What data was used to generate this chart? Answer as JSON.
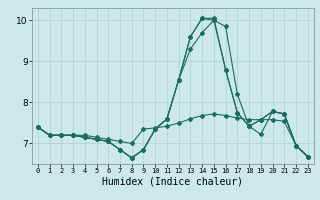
{
  "title": "",
  "xlabel": "Humidex (Indice chaleur)",
  "bg_color": "#cce8e8",
  "grid_color": "#aacfcf",
  "line_color": "#1a6b60",
  "xlim": [
    -0.5,
    23.5
  ],
  "ylim": [
    6.5,
    10.3
  ],
  "yticks": [
    7,
    8,
    9,
    10
  ],
  "xticks": [
    0,
    1,
    2,
    3,
    4,
    5,
    6,
    7,
    8,
    9,
    10,
    11,
    12,
    13,
    14,
    15,
    16,
    17,
    18,
    19,
    20,
    21,
    22,
    23
  ],
  "line1_x": [
    0,
    1,
    2,
    3,
    4,
    5,
    6,
    7,
    8,
    9,
    10,
    11,
    12,
    13,
    14,
    15,
    16,
    17,
    18,
    19,
    20,
    21,
    22,
    23
  ],
  "line1_y": [
    7.4,
    7.2,
    7.2,
    7.2,
    7.2,
    7.15,
    7.1,
    7.05,
    7.0,
    7.35,
    7.38,
    7.42,
    7.5,
    7.6,
    7.68,
    7.72,
    7.68,
    7.62,
    7.58,
    7.58,
    7.58,
    7.54,
    6.95,
    6.68
  ],
  "line2_x": [
    0,
    1,
    2,
    3,
    4,
    5,
    6,
    7,
    8,
    9,
    10,
    11,
    12,
    13,
    14,
    15,
    16,
    17,
    18,
    19,
    20,
    21,
    22,
    23
  ],
  "line2_y": [
    7.4,
    7.2,
    7.2,
    7.2,
    7.15,
    7.1,
    7.05,
    6.85,
    6.65,
    6.85,
    7.35,
    7.6,
    8.55,
    9.3,
    9.7,
    10.0,
    8.8,
    7.75,
    7.42,
    7.58,
    7.78,
    7.72,
    6.95,
    6.68
  ],
  "line3_x": [
    0,
    1,
    2,
    3,
    4,
    5,
    6,
    7,
    8,
    9,
    10,
    11,
    12,
    13,
    14,
    15,
    16,
    17,
    18,
    19,
    20,
    21,
    22,
    23
  ],
  "line3_y": [
    7.4,
    7.2,
    7.2,
    7.2,
    7.15,
    7.1,
    7.05,
    6.85,
    6.65,
    6.85,
    7.35,
    7.6,
    8.55,
    9.6,
    10.05,
    10.05,
    8.8,
    7.75,
    7.42,
    7.58,
    7.78,
    7.72,
    6.95,
    6.68
  ],
  "line4_x": [
    0,
    1,
    2,
    3,
    4,
    5,
    6,
    7,
    8,
    9,
    10,
    11,
    12,
    13,
    14,
    15,
    16,
    17,
    18,
    19,
    20,
    21,
    22,
    23
  ],
  "line4_y": [
    7.4,
    7.2,
    7.2,
    7.2,
    7.15,
    7.1,
    7.05,
    6.85,
    6.65,
    6.85,
    7.35,
    7.6,
    8.55,
    9.6,
    10.05,
    10.0,
    9.85,
    8.2,
    7.42,
    7.22,
    7.78,
    7.72,
    6.95,
    6.68
  ]
}
